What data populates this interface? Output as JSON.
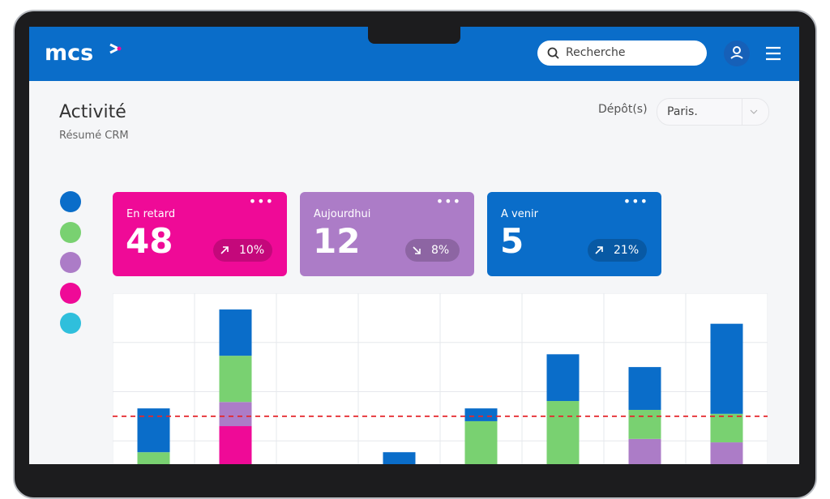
{
  "header": {
    "logo": "mcs",
    "search_placeholder": "Recherche"
  },
  "page": {
    "title": "Activité",
    "subtitle": "Résumé CRM",
    "filter_label": "Dépôt(s)",
    "filter_value": "Paris."
  },
  "cards": [
    {
      "title": "En retard",
      "value": 48,
      "change": "10%",
      "color": "#ef0a97"
    },
    {
      "title": "Aujourdhui",
      "value": 12,
      "change": "8%",
      "color": "#ac7cc7"
    },
    {
      "title": "A venir",
      "value": 5,
      "change": "21%",
      "color": "#0a6dc9"
    }
  ],
  "chart_data": {
    "type": "stacked_bar",
    "categories": [
      null,
      null,
      null,
      null,
      null,
      null,
      null,
      null
    ],
    "series": [
      {
        "color": "#2fbfdc",
        "values": [
          0,
          0,
          0,
          0,
          0,
          0,
          0,
          0
        ]
      },
      {
        "color": "#ef0a97",
        "values": [
          0,
          1.3,
          0,
          0,
          0,
          0,
          0,
          0
        ]
      },
      {
        "color": "#ac7cc7",
        "values": [
          0,
          0.49,
          0,
          0,
          0,
          0,
          1.04,
          0.97
        ]
      },
      {
        "color": "#79d171",
        "values": [
          0.77,
          0.94,
          0,
          0,
          1.4,
          1.81,
          0.59,
          0.58
        ]
      },
      {
        "color": "#0a6dc9",
        "values": [
          0.89,
          0.94,
          0,
          0.77,
          0.26,
          0.95,
          0.87,
          1.83
        ]
      }
    ],
    "ylim": [
      0,
      4
    ],
    "reference_line": 1.5,
    "reference_color": "#e5262b",
    "grid": true
  }
}
